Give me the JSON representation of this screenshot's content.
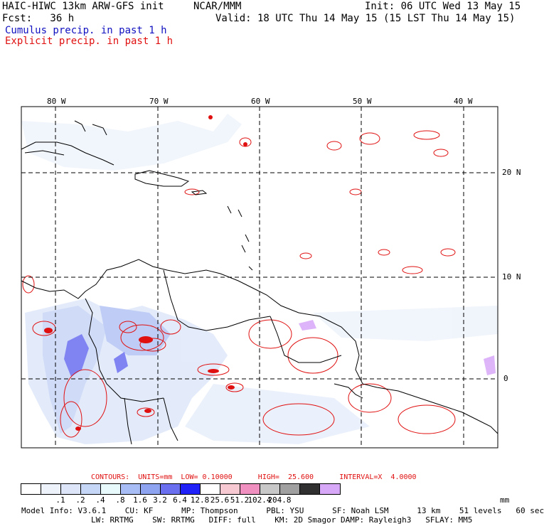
{
  "header": {
    "model": "HAIC-HIWC 13km ARW-GFS init",
    "org": "NCAR/MMM",
    "init": "Init: 06 UTC Wed 13 May 15",
    "fcst": "Fcst:   36 h",
    "valid": "Valid: 18 UTC Thu 14 May 15 (15 LST Thu 14 May 15)",
    "legend_cumulus": "Cumulus precip. in past 1 h",
    "legend_explicit": "Explicit precip. in past 1 h"
  },
  "map": {
    "lon_labels": [
      "80 W",
      "70 W",
      "60 W",
      "50 W",
      "40 W"
    ],
    "lat_labels": [
      "20 N",
      "10 N",
      "0"
    ],
    "colors": {
      "cumulus": "#1010c0",
      "explicit": "#e01010",
      "land": "#000000"
    }
  },
  "contour_info": {
    "text": "CONTOURS:  UNITS=mm  LOW= 0.10000      HIGH=  25.600      INTERVAL=X  4.0000"
  },
  "color_scale": {
    "colors": [
      "#ffffff",
      "#eef2fb",
      "#dde6f8",
      "#c6d6f6",
      "#e8fafc",
      "#a8bcf5",
      "#8ea4f0",
      "#6a6ff0",
      "#2020f8",
      "#ffffff",
      "#f6c9d3",
      "#f090c0",
      "#c8c8c8",
      "#a0a0a0",
      "#303030",
      "#d8a8f8"
    ],
    "labels": [
      ".1",
      ".2",
      ".4",
      ".8",
      "1.6",
      "3.2",
      "6.4",
      "12.8",
      "25.6",
      "51.2",
      "102.4",
      "204.8"
    ],
    "unit": "mm"
  },
  "model_info": {
    "line1": "Model Info: V3.6.1    CU: KF      MP: Thompson      PBL: YSU      SF: Noah LSM      13 km    51 levels   60 sec",
    "line2": "LW: RRTMG    SW: RRTMG   DIFF: full    KM: 2D Smagor DAMP: Rayleigh3   SFLAY: MM5"
  }
}
